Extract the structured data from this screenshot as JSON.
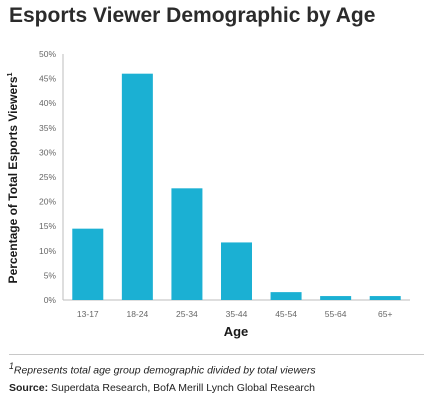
{
  "chart_data": {
    "type": "bar",
    "title": "Esports Viewer Demographic by Age",
    "xlabel": "Age",
    "ylabel": "Percentage of Total Esports Viewers",
    "ylabel_superscript": "1",
    "categories": [
      "13-17",
      "18-24",
      "25-34",
      "35-44",
      "45-54",
      "55-64",
      "65+"
    ],
    "values": [
      14.5,
      46,
      22.7,
      11.7,
      1.6,
      0.8,
      0.8
    ],
    "ylim": [
      0,
      50
    ],
    "yticks": [
      "0%",
      "5%",
      "10%",
      "15%",
      "20%",
      "25%",
      "30%",
      "35%",
      "40%",
      "45%",
      "50%"
    ],
    "grid": false,
    "bar_color": "#1bb0d3"
  },
  "footnote": {
    "marker": "1",
    "text": "Represents total age group demographic divided by total viewers"
  },
  "source": {
    "label": "Source:",
    "text": "Superdata Research, BofA Merill Lynch Global Research"
  }
}
